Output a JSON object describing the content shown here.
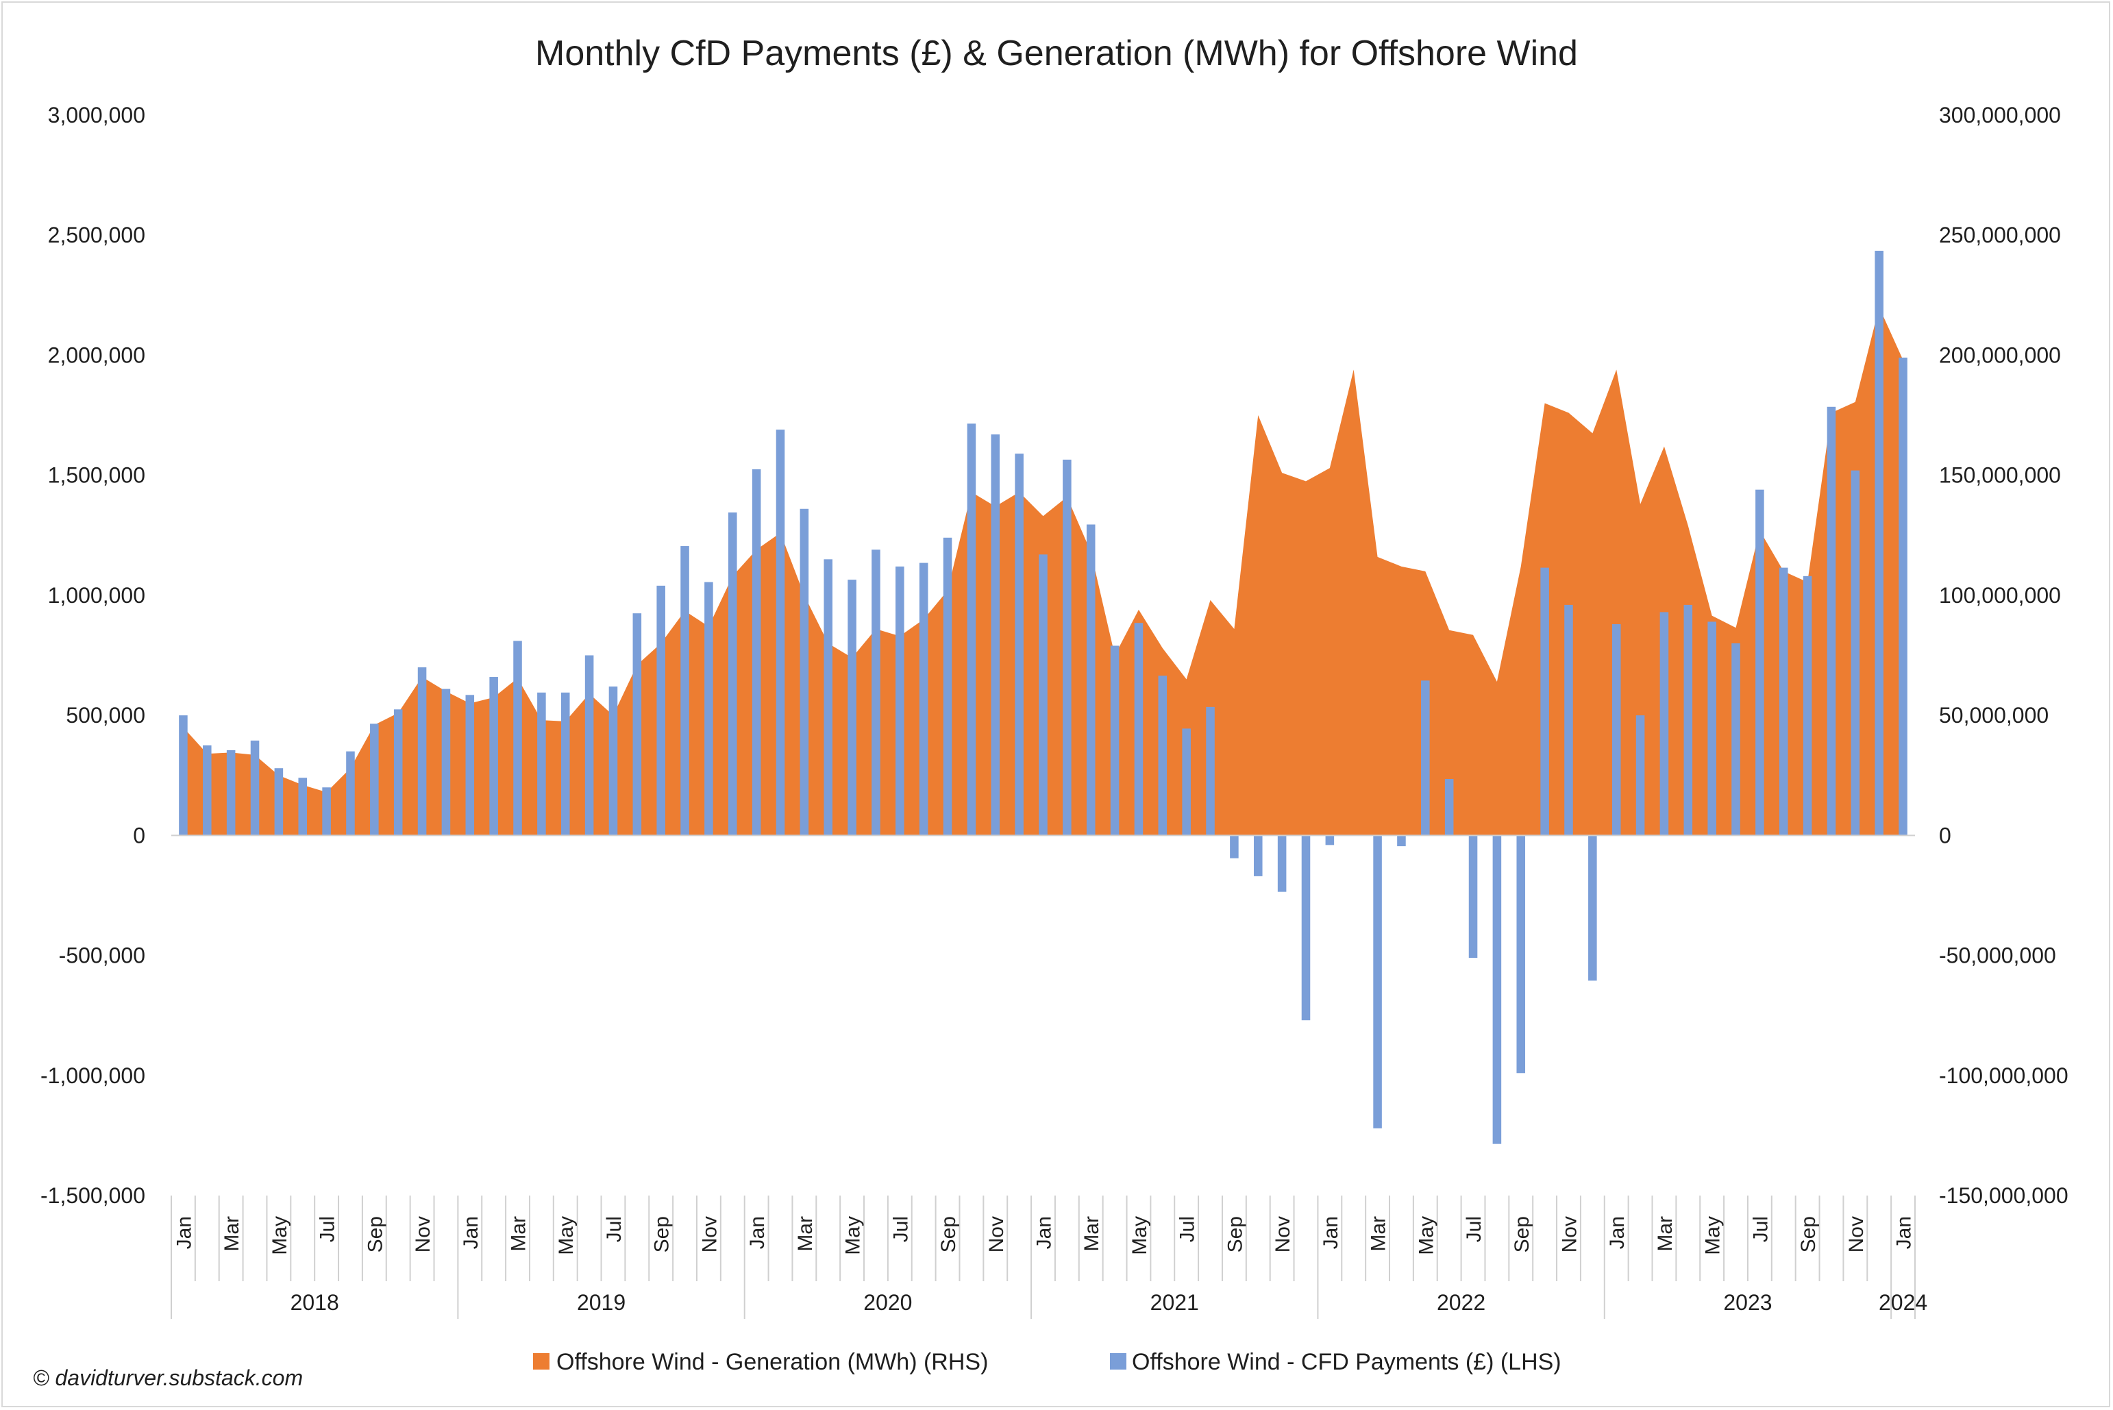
{
  "chart_data": {
    "type": "bar+area",
    "title": "Monthly CfD Payments (£) & Generation (MWh) for Offshore Wind",
    "y_left": {
      "range": [
        -1500000,
        3000000
      ],
      "ticks": [
        "3,000,000",
        "2,500,000",
        "2,000,000",
        "1,500,000",
        "1,000,000",
        "500,000",
        "0",
        "-500,000",
        "-1,000,000",
        "-1,500,000"
      ]
    },
    "y_right": {
      "range": [
        -150000000,
        300000000
      ],
      "ticks": [
        "300,000,000",
        "250,000,000",
        "200,000,000",
        "150,000,000",
        "100,000,000",
        "50,000,000",
        "0",
        "-50,000,000",
        "-100,000,000",
        "-150,000,000"
      ]
    },
    "month_labels": [
      "Jan",
      "Mar",
      "May",
      "Jul",
      "Sep",
      "Nov"
    ],
    "last_month_label": "Jan",
    "years": [
      "2018",
      "2019",
      "2020",
      "2021",
      "2022",
      "2023",
      "2024"
    ],
    "series": [
      {
        "name": "Offshore Wind - Generation (MWh) (RHS)",
        "type": "area",
        "axis": "right",
        "color": "#ED7D31",
        "values": [
          45000000,
          34000000,
          34500000,
          33500000,
          25000000,
          21000000,
          18000000,
          28000000,
          46000000,
          51000000,
          66000000,
          60000000,
          55000000,
          57500000,
          65500000,
          48000000,
          47500000,
          59000000,
          50000000,
          71000000,
          80000000,
          93500000,
          87000000,
          108000000,
          119000000,
          126000000,
          100000000,
          80000000,
          74000000,
          86000000,
          83000000,
          90000000,
          102000000,
          143000000,
          137000000,
          143000000,
          133000000,
          141000000,
          118000000,
          75000000,
          94000000,
          78000000,
          65000000,
          98000000,
          86000000,
          175000000,
          151000000,
          147500000,
          153000000,
          194000000,
          116000000,
          112000000,
          110000000,
          85500000,
          83500000,
          64000000,
          112000000,
          180000000,
          176000000,
          167500000,
          194000000,
          138000000,
          162000000,
          129000000,
          91500000,
          86500000,
          127000000,
          110000000,
          105500000,
          176000000,
          180500000,
          220000000,
          198000000
        ]
      },
      {
        "name": "Offshore Wind - CFD Payments (£) (LHS)",
        "type": "bar",
        "axis": "left",
        "color": "#7A9ED8",
        "values": [
          500000,
          375000,
          355000,
          395000,
          280000,
          240000,
          200000,
          350000,
          465000,
          525000,
          700000,
          610000,
          585000,
          660000,
          810000,
          595000,
          595000,
          750000,
          620000,
          925000,
          1040000,
          1205000,
          1055000,
          1345000,
          1525000,
          1690000,
          1360000,
          1150000,
          1065000,
          1190000,
          1120000,
          1135000,
          1240000,
          1715000,
          1670000,
          1590000,
          1170000,
          1565000,
          1295000,
          790000,
          885000,
          665000,
          445000,
          535000,
          -95000,
          -170000,
          -235000,
          -770000,
          -40000,
          0,
          -1220000,
          -45000,
          645000,
          235000,
          -510000,
          -1285000,
          -990000,
          1115000,
          960000,
          -605000,
          880000,
          500000,
          930000,
          960000,
          890000,
          800000,
          1440000,
          1115000,
          1080000,
          1785000,
          1520000,
          2435000,
          1990000
        ]
      }
    ],
    "legend_position": "bottom-center",
    "grid": false,
    "credit": "© davidturver.substack.com"
  }
}
